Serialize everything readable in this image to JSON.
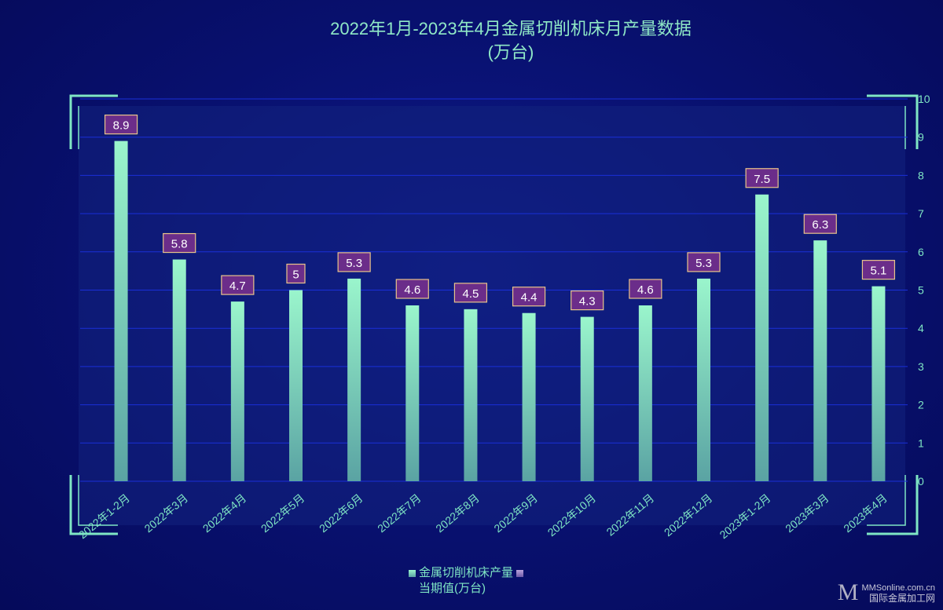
{
  "title_line1": "2022年1月-2023年4月金属切削机床月产量数据",
  "title_line2": "(万台)",
  "legend": {
    "series_label": "金属切削机床产量",
    "label_label": "当期值(万台)"
  },
  "watermark": {
    "logo": "M",
    "site": "MMSonline.com.cn",
    "name": "国际金属加工网"
  },
  "colors": {
    "background": "#08106e",
    "bar_top": "#9af5cc",
    "bar_bottom": "#5aa3a3",
    "grid": "#1a2fd8",
    "axis_text": "#7fe6c4",
    "label_fill": "#6b2d8a",
    "label_border": "#e8c48a",
    "label_text": "#ffffff",
    "frame": "#7fe6c4"
  },
  "chart_data": {
    "type": "bar",
    "title": "2022年1月-2023年4月金属切削机床月产量数据 (万台)",
    "categories": [
      "2022年1-2月",
      "2022年3月",
      "2022年4月",
      "2022年5月",
      "2022年6月",
      "2022年7月",
      "2022年8月",
      "2022年9月",
      "2022年10月",
      "2022年11月",
      "2022年12月",
      "2023年1-2月",
      "2023年3月",
      "2023年4月"
    ],
    "series": [
      {
        "name": "金属切削机床产量",
        "values": [
          8.9,
          5.8,
          4.7,
          5,
          5.3,
          4.6,
          4.5,
          4.4,
          4.3,
          4.6,
          5.3,
          7.5,
          6.3,
          5.1
        ]
      }
    ],
    "value_label_name": "当期值(万台)",
    "y_ticks": [
      0,
      1,
      2,
      3,
      4,
      5,
      6,
      7,
      8,
      9,
      10
    ],
    "ylim": [
      0,
      10
    ],
    "y_axis_side": "right",
    "grid": true,
    "legend_position": "bottom"
  }
}
